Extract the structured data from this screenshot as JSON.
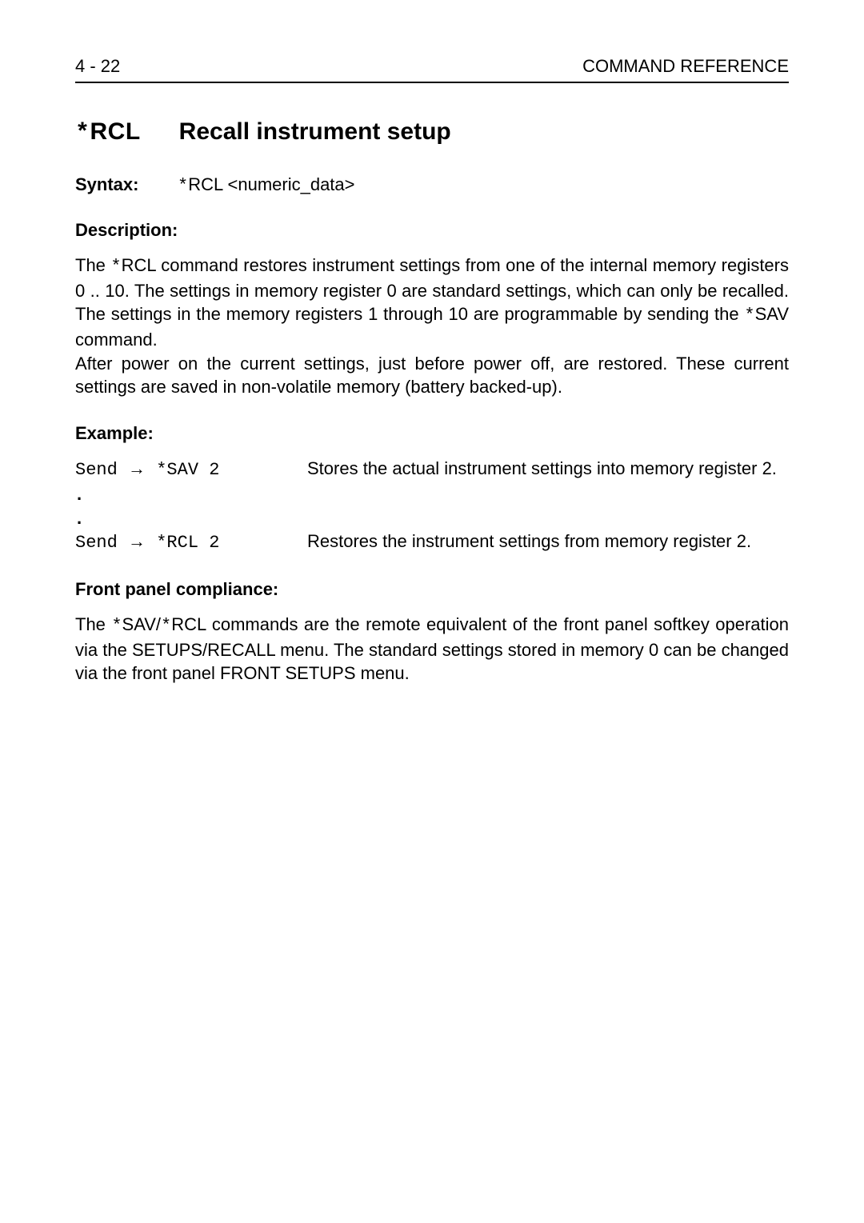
{
  "header": {
    "page_number": "4 - 22",
    "section": "COMMAND REFERENCE"
  },
  "title": {
    "command": "*RCL",
    "description": "Recall instrument setup"
  },
  "syntax": {
    "label": "Syntax:",
    "value": "*RCL <numeric_data>"
  },
  "description": {
    "label": "Description:",
    "para1": "The *RCL command restores instrument settings from one of the internal memory registers 0 .. 10. The settings in memory register 0 are standard settings, which can only be recalled. The settings in the memory registers 1 through 10 are programmable by sending the *SAV command.",
    "para2": "After power on the current settings, just before power off, are restored. These current settings are saved in non-volatile memory (battery backed-up)."
  },
  "example": {
    "label": "Example:",
    "rows": [
      {
        "cmd": "Send → *SAV 2",
        "text": "Stores the actual instrument settings into memory register 2."
      },
      {
        "cmd": ".",
        "text": ""
      },
      {
        "cmd": ".",
        "text": ""
      },
      {
        "cmd": "Send → *RCL 2",
        "text": "Restores the instrument settings from memory register 2."
      }
    ]
  },
  "front_panel": {
    "label": "Front panel compliance:",
    "text": "The *SAV/*RCL commands are the remote equivalent of the front panel softkey operation via the SETUPS/RECALL menu. The standard settings stored in memory 0 can be changed via the front panel FRONT SETUPS menu."
  }
}
